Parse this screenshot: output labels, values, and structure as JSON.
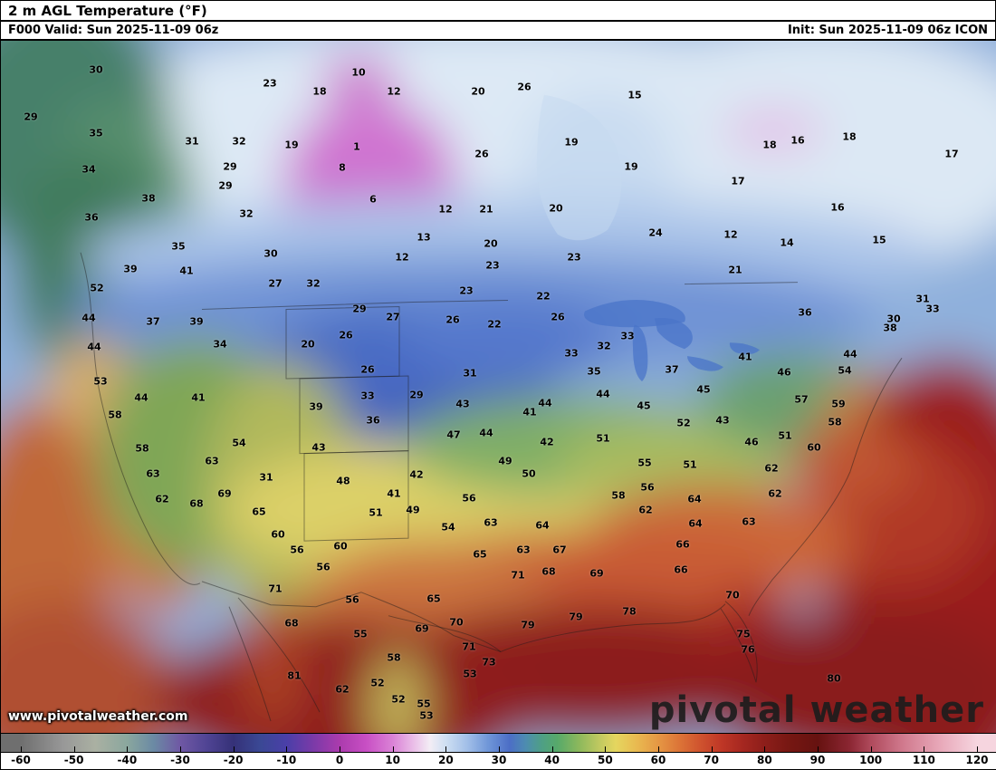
{
  "header": {
    "title": "2 m AGL Temperature (°F)",
    "valid": "F000 Valid: Sun 2025-11-09 06z",
    "init": "Init: Sun 2025-11-09 06z ICON"
  },
  "branding": {
    "watermark": "www.pivotalweather.com",
    "logo": "pivotal weather"
  },
  "chart_data": {
    "type": "heatmap",
    "title": "2 m AGL Temperature (°F)",
    "model": "ICON",
    "forecast_hour": "F000",
    "valid_time": "Sun 2025-11-09 06z",
    "init_time": "Sun 2025-11-09 06z",
    "units": "°F",
    "colorbar": {
      "range": [
        -60,
        120
      ],
      "ticks": [
        -60,
        -50,
        -40,
        -30,
        -20,
        -10,
        0,
        10,
        20,
        30,
        40,
        50,
        60,
        70,
        80,
        90,
        100,
        110,
        120
      ],
      "stops": [
        [
          -60,
          "#6f6f6f"
        ],
        [
          -52,
          "#989898"
        ],
        [
          -46,
          "#aab0a2"
        ],
        [
          -40,
          "#8aa79e"
        ],
        [
          -35,
          "#6b8aa4"
        ],
        [
          -30,
          "#6f58a4"
        ],
        [
          -25,
          "#504494"
        ],
        [
          -20,
          "#353178"
        ],
        [
          -15,
          "#3a4894"
        ],
        [
          -10,
          "#4a3fa8"
        ],
        [
          -5,
          "#7a3aa8"
        ],
        [
          0,
          "#ab3bad"
        ],
        [
          5,
          "#c84fc4"
        ],
        [
          10,
          "#da82d6"
        ],
        [
          14,
          "#eabfe8"
        ],
        [
          17,
          "#f3edf5"
        ],
        [
          20,
          "#cedff2"
        ],
        [
          24,
          "#a2bfe8"
        ],
        [
          28,
          "#6f96d8"
        ],
        [
          32,
          "#4c6ec6"
        ],
        [
          35,
          "#4d8cb0"
        ],
        [
          38,
          "#4e9f86"
        ],
        [
          41,
          "#57a96a"
        ],
        [
          45,
          "#8bb85c"
        ],
        [
          49,
          "#c1c960"
        ],
        [
          52,
          "#e5d65f"
        ],
        [
          56,
          "#e9b950"
        ],
        [
          60,
          "#e59744"
        ],
        [
          64,
          "#dc7437"
        ],
        [
          68,
          "#cf522e"
        ],
        [
          72,
          "#be3626"
        ],
        [
          76,
          "#a52720"
        ],
        [
          80,
          "#8d1e1a"
        ],
        [
          85,
          "#751712"
        ],
        [
          90,
          "#661210"
        ],
        [
          96,
          "#8b2632"
        ],
        [
          100,
          "#af4a5c"
        ],
        [
          106,
          "#d0798d"
        ],
        [
          113,
          "#e8a8b9"
        ],
        [
          120,
          "#f6d5df"
        ]
      ]
    },
    "points_format": "[x_px, y_px_in_map, temp_f]",
    "points": [
      [
        105,
        32,
        30
      ],
      [
        297,
        47,
        23
      ],
      [
        395,
        35,
        10
      ],
      [
        352,
        56,
        18
      ],
      [
        434,
        56,
        12
      ],
      [
        527,
        56,
        20
      ],
      [
        578,
        51,
        26
      ],
      [
        700,
        60,
        15
      ],
      [
        33,
        84,
        29
      ],
      [
        105,
        102,
        35
      ],
      [
        211,
        111,
        31
      ],
      [
        263,
        111,
        32
      ],
      [
        321,
        115,
        19
      ],
      [
        393,
        117,
        1
      ],
      [
        531,
        125,
        26
      ],
      [
        630,
        112,
        19
      ],
      [
        849,
        115,
        18
      ],
      [
        880,
        110,
        16
      ],
      [
        937,
        106,
        18
      ],
      [
        1050,
        125,
        17
      ],
      [
        97,
        142,
        34
      ],
      [
        253,
        139,
        29
      ],
      [
        377,
        140,
        8
      ],
      [
        696,
        139,
        19
      ],
      [
        814,
        155,
        17
      ],
      [
        163,
        174,
        38
      ],
      [
        248,
        160,
        29
      ],
      [
        411,
        175,
        6
      ],
      [
        491,
        186,
        12
      ],
      [
        536,
        186,
        21
      ],
      [
        613,
        185,
        20
      ],
      [
        924,
        184,
        16
      ],
      [
        100,
        195,
        36
      ],
      [
        271,
        191,
        32
      ],
      [
        467,
        217,
        13
      ],
      [
        541,
        224,
        20
      ],
      [
        723,
        212,
        24
      ],
      [
        806,
        214,
        12
      ],
      [
        868,
        223,
        14
      ],
      [
        970,
        220,
        15
      ],
      [
        196,
        227,
        35
      ],
      [
        298,
        235,
        30
      ],
      [
        443,
        239,
        12
      ],
      [
        543,
        248,
        23
      ],
      [
        633,
        239,
        23
      ],
      [
        811,
        253,
        21
      ],
      [
        143,
        252,
        39
      ],
      [
        205,
        254,
        41
      ],
      [
        303,
        268,
        27
      ],
      [
        345,
        268,
        32
      ],
      [
        514,
        276,
        23
      ],
      [
        599,
        282,
        22
      ],
      [
        1018,
        285,
        31
      ],
      [
        1029,
        296,
        33
      ],
      [
        986,
        307,
        30
      ],
      [
        106,
        273,
        52
      ],
      [
        97,
        306,
        44
      ],
      [
        168,
        310,
        37
      ],
      [
        216,
        310,
        39
      ],
      [
        396,
        296,
        29
      ],
      [
        433,
        305,
        27
      ],
      [
        499,
        308,
        26
      ],
      [
        545,
        313,
        22
      ],
      [
        615,
        305,
        26
      ],
      [
        692,
        326,
        33
      ],
      [
        666,
        337,
        32
      ],
      [
        888,
        300,
        36
      ],
      [
        982,
        317,
        38
      ],
      [
        103,
        338,
        44
      ],
      [
        242,
        335,
        34
      ],
      [
        339,
        335,
        20
      ],
      [
        381,
        325,
        26
      ],
      [
        405,
        363,
        26
      ],
      [
        518,
        367,
        31
      ],
      [
        630,
        345,
        33
      ],
      [
        655,
        365,
        35
      ],
      [
        741,
        363,
        37
      ],
      [
        822,
        349,
        41
      ],
      [
        865,
        366,
        46
      ],
      [
        938,
        346,
        44
      ],
      [
        932,
        364,
        54
      ],
      [
        110,
        376,
        53
      ],
      [
        155,
        394,
        44
      ],
      [
        218,
        394,
        41
      ],
      [
        405,
        392,
        33
      ],
      [
        459,
        391,
        29
      ],
      [
        348,
        404,
        39
      ],
      [
        411,
        419,
        36
      ],
      [
        510,
        401,
        43
      ],
      [
        584,
        410,
        41
      ],
      [
        601,
        400,
        44
      ],
      [
        665,
        390,
        44
      ],
      [
        710,
        403,
        45
      ],
      [
        776,
        385,
        45
      ],
      [
        754,
        422,
        52
      ],
      [
        797,
        419,
        43
      ],
      [
        884,
        396,
        57
      ],
      [
        925,
        401,
        59
      ],
      [
        921,
        421,
        58
      ],
      [
        126,
        413,
        58
      ],
      [
        156,
        450,
        58
      ],
      [
        263,
        444,
        54
      ],
      [
        536,
        433,
        44
      ],
      [
        500,
        435,
        47
      ],
      [
        603,
        443,
        42
      ],
      [
        665,
        439,
        51
      ],
      [
        829,
        443,
        46
      ],
      [
        866,
        436,
        51
      ],
      [
        898,
        449,
        60
      ],
      [
        168,
        478,
        63
      ],
      [
        233,
        464,
        63
      ],
      [
        293,
        482,
        31
      ],
      [
        351,
        449,
        43
      ],
      [
        557,
        464,
        49
      ],
      [
        583,
        478,
        50
      ],
      [
        711,
        466,
        55
      ],
      [
        761,
        468,
        51
      ],
      [
        851,
        472,
        62
      ],
      [
        178,
        506,
        62
      ],
      [
        216,
        511,
        68
      ],
      [
        247,
        500,
        69
      ],
      [
        285,
        520,
        65
      ],
      [
        378,
        486,
        48
      ],
      [
        459,
        479,
        42
      ],
      [
        434,
        500,
        41
      ],
      [
        517,
        505,
        56
      ],
      [
        455,
        518,
        49
      ],
      [
        682,
        502,
        58
      ],
      [
        714,
        493,
        56
      ],
      [
        712,
        518,
        62
      ],
      [
        766,
        506,
        64
      ],
      [
        855,
        500,
        62
      ],
      [
        306,
        545,
        60
      ],
      [
        414,
        521,
        51
      ],
      [
        494,
        537,
        54
      ],
      [
        541,
        532,
        63
      ],
      [
        598,
        535,
        64
      ],
      [
        767,
        533,
        64
      ],
      [
        753,
        556,
        66
      ],
      [
        826,
        531,
        63
      ],
      [
        327,
        562,
        56
      ],
      [
        375,
        558,
        60
      ],
      [
        356,
        581,
        56
      ],
      [
        529,
        567,
        65
      ],
      [
        577,
        562,
        63
      ],
      [
        617,
        562,
        67
      ],
      [
        605,
        586,
        68
      ],
      [
        571,
        590,
        71
      ],
      [
        658,
        588,
        69
      ],
      [
        751,
        584,
        66
      ],
      [
        808,
        612,
        70
      ],
      [
        303,
        605,
        71
      ],
      [
        388,
        617,
        56
      ],
      [
        478,
        616,
        65
      ],
      [
        503,
        642,
        70
      ],
      [
        321,
        643,
        68
      ],
      [
        397,
        655,
        55
      ],
      [
        465,
        649,
        69
      ],
      [
        517,
        669,
        71
      ],
      [
        539,
        686,
        73
      ],
      [
        582,
        645,
        79
      ],
      [
        635,
        636,
        79
      ],
      [
        694,
        630,
        78
      ],
      [
        820,
        655,
        75
      ],
      [
        825,
        672,
        76
      ],
      [
        920,
        704,
        80
      ],
      [
        434,
        681,
        58
      ],
      [
        518,
        699,
        53
      ],
      [
        416,
        709,
        52
      ],
      [
        439,
        727,
        52
      ],
      [
        467,
        732,
        55
      ],
      [
        324,
        701,
        81
      ],
      [
        377,
        716,
        62
      ],
      [
        470,
        745,
        53
      ]
    ]
  }
}
